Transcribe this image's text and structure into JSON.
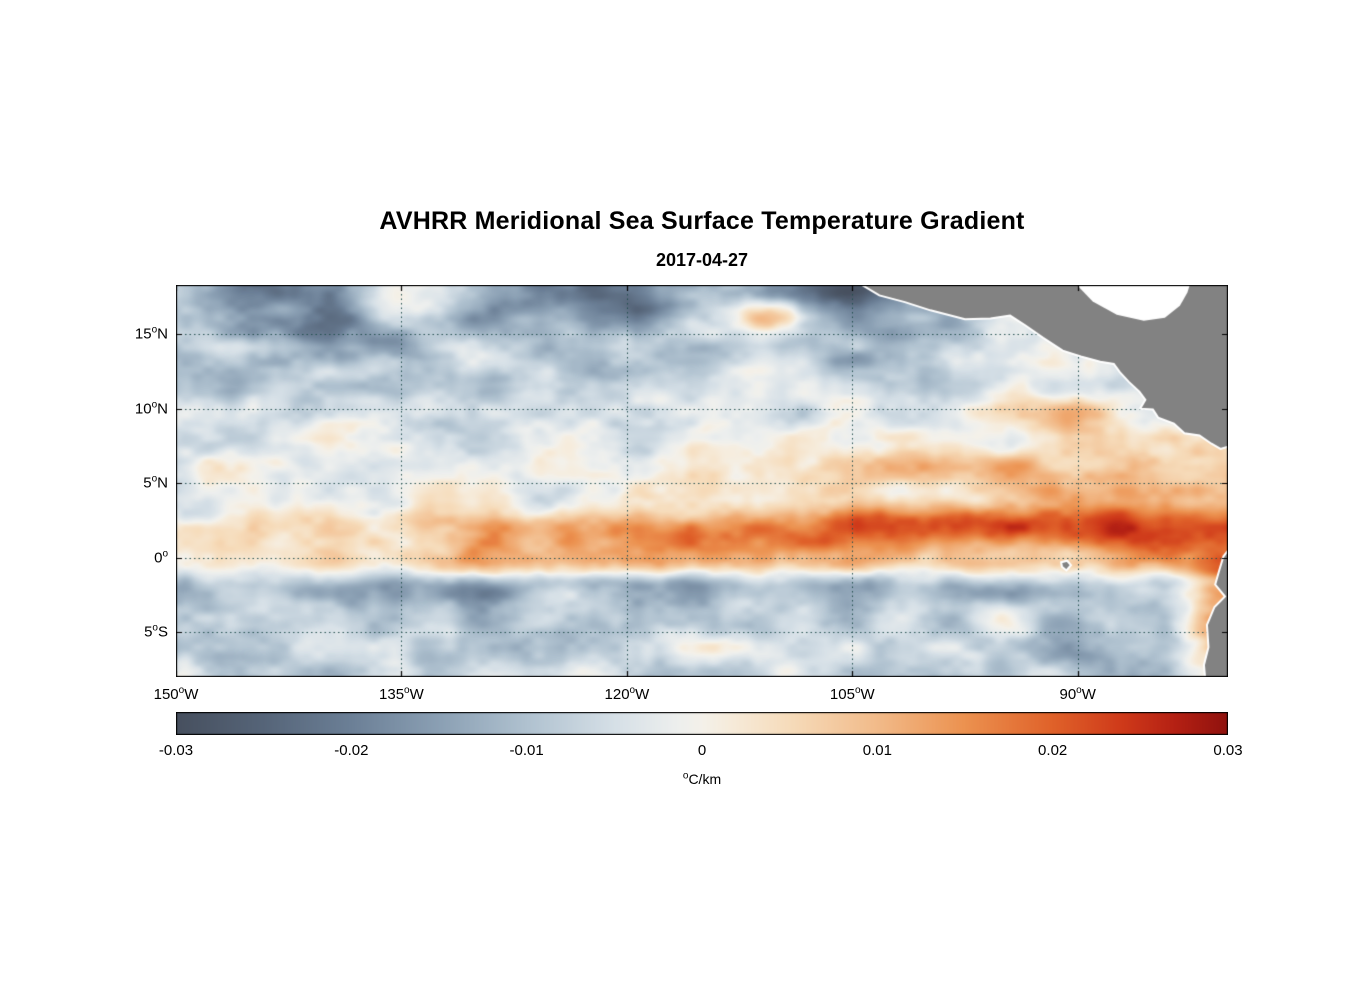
{
  "figure": {
    "title": "AVHRR Meridional Sea Surface Temperature Gradient",
    "date": "2017-04-27"
  },
  "axes": {
    "y_ticks": [
      {
        "deg": "15",
        "dir": "N",
        "lat": 15
      },
      {
        "deg": "10",
        "dir": "N",
        "lat": 10
      },
      {
        "deg": "5",
        "dir": "N",
        "lat": 5
      },
      {
        "deg": "0",
        "dir": "",
        "lat": 0
      },
      {
        "deg": "5",
        "dir": "S",
        "lat": -5
      }
    ],
    "x_ticks": [
      {
        "deg": "150",
        "dir": "W",
        "lon": -150
      },
      {
        "deg": "135",
        "dir": "W",
        "lon": -135
      },
      {
        "deg": "120",
        "dir": "W",
        "lon": -120
      },
      {
        "deg": "105",
        "dir": "W",
        "lon": -105
      },
      {
        "deg": "90",
        "dir": "W",
        "lon": -90
      }
    ]
  },
  "colorbar": {
    "min": -0.03,
    "max": 0.03,
    "ticks": [
      {
        "label": "-0.03",
        "value": -0.03
      },
      {
        "label": "-0.02",
        "value": -0.02
      },
      {
        "label": "-0.01",
        "value": -0.01
      },
      {
        "label": "0",
        "value": 0
      },
      {
        "label": "0.01",
        "value": 0.01
      },
      {
        "label": "0.02",
        "value": 0.02
      },
      {
        "label": "0.03",
        "value": 0.03
      }
    ],
    "unit_degree": "o",
    "unit_text": "C/km"
  },
  "chart_data": {
    "type": "heatmap",
    "title": "AVHRR Meridional Sea Surface Temperature Gradient",
    "subtitle": "2017-04-27",
    "units": "degC/km",
    "lon_range": [
      -150,
      -80
    ],
    "lat_range": [
      -8,
      18.3
    ],
    "colorbar_range": [
      -0.03,
      0.03
    ],
    "grid_on": true,
    "grid_style": "dotted",
    "grid_color": "#234f4f",
    "frame_color": "#000000",
    "land_color": "#828282",
    "coastline_color": "#ffffff",
    "noise_amplitude": 0.009,
    "grid_lons": [
      -150,
      -145,
      -140,
      -135,
      -130,
      -125,
      -120,
      -115,
      -110,
      -105,
      -100,
      -95,
      -90,
      -85,
      -80
    ],
    "grid_lats": [
      18,
      16,
      14,
      12,
      10,
      8,
      6,
      4,
      2,
      0,
      -2,
      -4,
      -6,
      -8
    ],
    "values": [
      [
        -0.01,
        -0.022,
        -0.014,
        -0.004,
        -0.01,
        -0.02,
        -0.024,
        -0.008,
        -0.016,
        -0.026,
        -0.016,
        -0.006,
        -0.004,
        -0.002,
        0.0
      ],
      [
        -0.006,
        -0.016,
        -0.02,
        -0.008,
        -0.014,
        -0.01,
        -0.018,
        -0.006,
        0.008,
        -0.02,
        -0.01,
        -0.004,
        -0.002,
        0.0,
        0.0
      ],
      [
        -0.008,
        -0.004,
        -0.012,
        -0.014,
        -0.006,
        -0.012,
        -0.008,
        -0.014,
        -0.006,
        -0.012,
        -0.008,
        -0.004,
        -0.006,
        -0.002,
        -0.002
      ],
      [
        -0.006,
        -0.01,
        -0.004,
        -0.008,
        -0.01,
        -0.004,
        -0.01,
        -0.006,
        -0.004,
        -0.008,
        -0.01,
        -0.004,
        -0.002,
        -0.004,
        -0.002
      ],
      [
        -0.004,
        -0.002,
        -0.006,
        -0.004,
        -0.002,
        -0.006,
        -0.004,
        -0.002,
        -0.004,
        -0.002,
        -0.004,
        0.002,
        0.008,
        -0.002,
        -0.004
      ],
      [
        -0.004,
        -0.006,
        -0.002,
        -0.004,
        -0.006,
        -0.002,
        -0.004,
        -0.002,
        -0.002,
        0.0,
        0.004,
        0.002,
        0.006,
        0.004,
        0.002
      ],
      [
        -0.002,
        -0.002,
        -0.004,
        -0.002,
        -0.002,
        -0.002,
        -0.002,
        0.0,
        0.002,
        0.004,
        0.008,
        0.01,
        0.006,
        0.01,
        0.006
      ],
      [
        -0.002,
        -0.001,
        -0.002,
        -0.002,
        -0.001,
        -0.002,
        0.0,
        0.002,
        0.003,
        0.005,
        0.006,
        0.005,
        0.01,
        0.014,
        0.012
      ],
      [
        0.004,
        0.006,
        0.004,
        0.006,
        0.01,
        0.016,
        0.014,
        0.018,
        0.016,
        0.02,
        0.018,
        0.022,
        0.02,
        0.024,
        0.026
      ],
      [
        0.002,
        0.003,
        0.004,
        0.006,
        0.01,
        0.012,
        0.01,
        0.012,
        0.01,
        0.012,
        0.008,
        0.01,
        0.006,
        0.012,
        0.02
      ],
      [
        -0.01,
        -0.008,
        -0.014,
        -0.012,
        -0.016,
        -0.01,
        -0.016,
        -0.014,
        -0.01,
        -0.014,
        -0.01,
        -0.012,
        -0.014,
        -0.006,
        0.01
      ],
      [
        -0.006,
        -0.004,
        -0.008,
        -0.006,
        -0.01,
        -0.008,
        -0.012,
        -0.006,
        -0.008,
        -0.006,
        -0.008,
        -0.004,
        -0.01,
        -0.01,
        0.012
      ],
      [
        -0.006,
        -0.008,
        -0.004,
        -0.008,
        -0.006,
        -0.01,
        -0.008,
        -0.004,
        -0.006,
        -0.008,
        -0.004,
        -0.01,
        -0.012,
        -0.008,
        0.006
      ],
      [
        -0.004,
        -0.006,
        -0.008,
        -0.006,
        -0.008,
        -0.004,
        -0.006,
        -0.008,
        -0.004,
        -0.006,
        -0.008,
        -0.006,
        -0.01,
        -0.012,
        0.004
      ]
    ],
    "color_stops": [
      [
        -0.03,
        "#47505f"
      ],
      [
        -0.025,
        "#566579"
      ],
      [
        -0.02,
        "#6c8097"
      ],
      [
        -0.015,
        "#8ba0b4"
      ],
      [
        -0.01,
        "#b0c2d0"
      ],
      [
        -0.005,
        "#d6e0e7"
      ],
      [
        -0.0015,
        "#edefee"
      ],
      [
        0.0,
        "#f4f1ea"
      ],
      [
        0.0015,
        "#f6ecdc"
      ],
      [
        0.005,
        "#f6dcbb"
      ],
      [
        0.01,
        "#f2bb8a"
      ],
      [
        0.015,
        "#ec9250"
      ],
      [
        0.02,
        "#e0622a"
      ],
      [
        0.024,
        "#cf3a1a"
      ],
      [
        0.027,
        "#b52114"
      ],
      [
        0.03,
        "#90120e"
      ]
    ],
    "land_polygons": [
      {
        "name": "central-america",
        "points": [
          [
            -104.6,
            18.45
          ],
          [
            -103.2,
            17.6
          ],
          [
            -101.5,
            17.15
          ],
          [
            -99.8,
            16.6
          ],
          [
            -97.5,
            16.0
          ],
          [
            -95.8,
            16.05
          ],
          [
            -94.5,
            16.25
          ],
          [
            -93.5,
            15.6
          ],
          [
            -92.3,
            14.75
          ],
          [
            -91.0,
            13.9
          ],
          [
            -89.8,
            13.5
          ],
          [
            -88.5,
            13.15
          ],
          [
            -87.6,
            13.0
          ],
          [
            -87.2,
            12.45
          ],
          [
            -86.6,
            11.8
          ],
          [
            -85.9,
            11.15
          ],
          [
            -85.5,
            10.6
          ],
          [
            -85.85,
            10.0
          ],
          [
            -85.0,
            9.95
          ],
          [
            -84.65,
            9.4
          ],
          [
            -83.6,
            9.0
          ],
          [
            -82.9,
            8.35
          ],
          [
            -81.9,
            8.2
          ],
          [
            -81.1,
            7.65
          ],
          [
            -80.5,
            7.3
          ],
          [
            -80.0,
            7.45
          ],
          [
            -79.5,
            7.6
          ],
          [
            -79.5,
            18.45
          ]
        ]
      },
      {
        "name": "south-america",
        "points": [
          [
            -79.6,
            1.0
          ],
          [
            -80.3,
            0.1
          ],
          [
            -80.6,
            -0.9
          ],
          [
            -80.85,
            -1.8
          ],
          [
            -80.2,
            -2.6
          ],
          [
            -80.9,
            -3.3
          ],
          [
            -81.4,
            -4.5
          ],
          [
            -81.3,
            -6.0
          ],
          [
            -81.6,
            -7.2
          ],
          [
            -81.5,
            -8.3
          ],
          [
            -79.6,
            -8.3
          ]
        ]
      },
      {
        "name": "galapagos-islands",
        "points": [
          [
            -91.1,
            -0.3
          ],
          [
            -90.7,
            -0.2
          ],
          [
            -90.45,
            -0.5
          ],
          [
            -90.75,
            -0.85
          ],
          [
            -91.05,
            -0.6
          ]
        ]
      }
    ],
    "water_polygons": [
      {
        "name": "caribbean-sea",
        "points": [
          [
            -90.2,
            18.45
          ],
          [
            -89.0,
            17.2
          ],
          [
            -87.4,
            16.3
          ],
          [
            -85.6,
            15.9
          ],
          [
            -84.2,
            16.1
          ],
          [
            -83.2,
            16.9
          ],
          [
            -82.7,
            17.8
          ],
          [
            -82.5,
            18.45
          ]
        ]
      }
    ]
  }
}
